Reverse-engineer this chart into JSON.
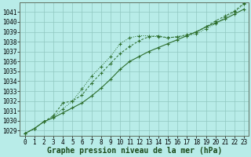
{
  "title": "Graphe pression niveau de la mer (hPa)",
  "background_color": "#b8ece8",
  "grid_color": "#90c8c0",
  "line_color": "#2d6e2d",
  "x_hours": [
    0,
    1,
    2,
    3,
    4,
    5,
    6,
    7,
    8,
    9,
    10,
    11,
    12,
    13,
    14,
    15,
    16,
    17,
    18,
    19,
    20,
    21,
    22,
    23
  ],
  "series1": [
    1028.7,
    1029.2,
    1029.9,
    1030.3,
    1030.8,
    1031.3,
    1031.8,
    1032.5,
    1033.3,
    1034.2,
    1035.2,
    1036.0,
    1036.5,
    1037.0,
    1037.4,
    1037.8,
    1038.2,
    1038.6,
    1039.0,
    1039.5,
    1039.9,
    1040.3,
    1040.8,
    1041.3
  ],
  "series2": [
    1028.7,
    1029.2,
    1029.9,
    1030.4,
    1031.2,
    1032.0,
    1033.2,
    1034.5,
    1035.5,
    1036.5,
    1037.8,
    1038.4,
    1038.6,
    1038.6,
    1038.5,
    1038.4,
    1038.5,
    1038.6,
    1038.8,
    1039.3,
    1039.8,
    1040.5,
    1041.0,
    1041.8
  ],
  "series3": [
    1028.7,
    1029.2,
    1029.9,
    1030.5,
    1031.8,
    1032.0,
    1032.6,
    1033.8,
    1034.8,
    1035.8,
    1036.8,
    1037.5,
    1038.1,
    1038.5,
    1038.6,
    1038.4,
    1038.5,
    1038.7,
    1039.0,
    1039.5,
    1040.1,
    1040.6,
    1041.1,
    1041.9
  ],
  "ylim_min": 1028.5,
  "ylim_max": 1042.0,
  "yticks": [
    1029,
    1030,
    1031,
    1032,
    1033,
    1034,
    1035,
    1036,
    1037,
    1038,
    1039,
    1040,
    1041
  ],
  "title_fontsize": 7.0,
  "tick_fontsize": 5.5,
  "ylabel_pad": 1,
  "xlabel_pad": 1
}
